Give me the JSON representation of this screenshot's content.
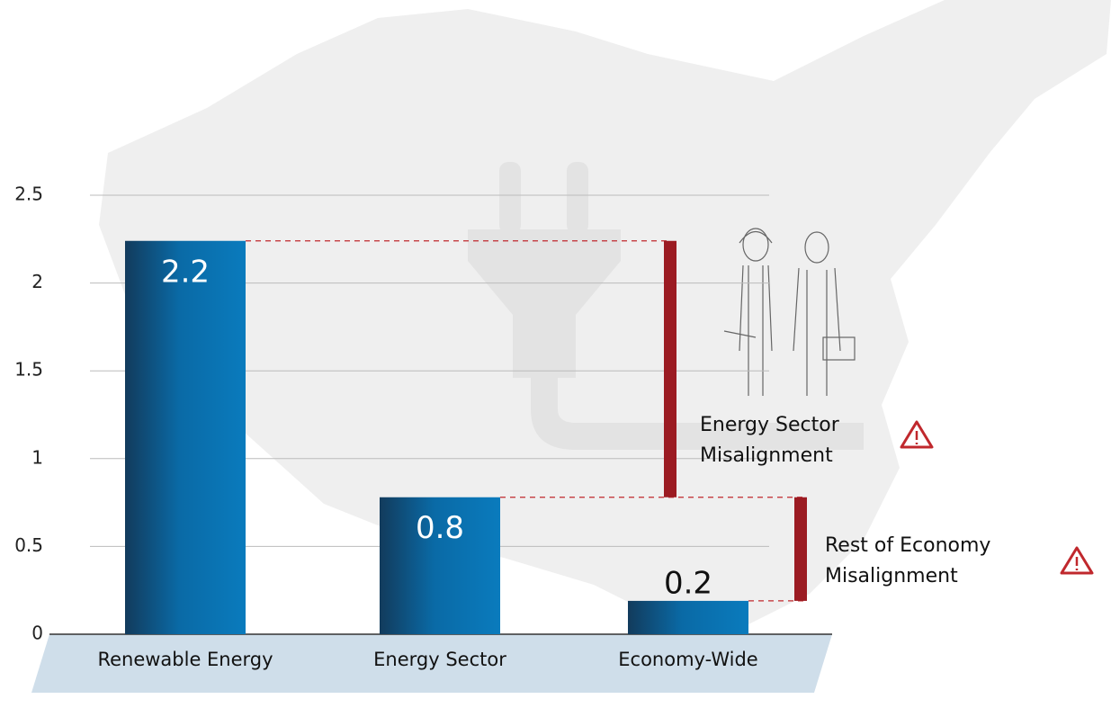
{
  "chart_data": {
    "type": "bar",
    "categories": [
      "Renewable Energy",
      "Energy Sector",
      "Economy-Wide"
    ],
    "values": [
      2.24,
      0.78,
      0.19
    ],
    "value_labels": [
      "2.2",
      "0.8",
      "0.2"
    ],
    "ylim": [
      0,
      2.5
    ],
    "yticks": [
      0,
      0.5,
      1,
      1.5,
      2,
      2.5
    ],
    "grid": true,
    "annotations": [
      [
        "Energy Sector",
        "Misalignment"
      ],
      [
        "Rest of Economy",
        "Misalignment"
      ]
    ]
  }
}
